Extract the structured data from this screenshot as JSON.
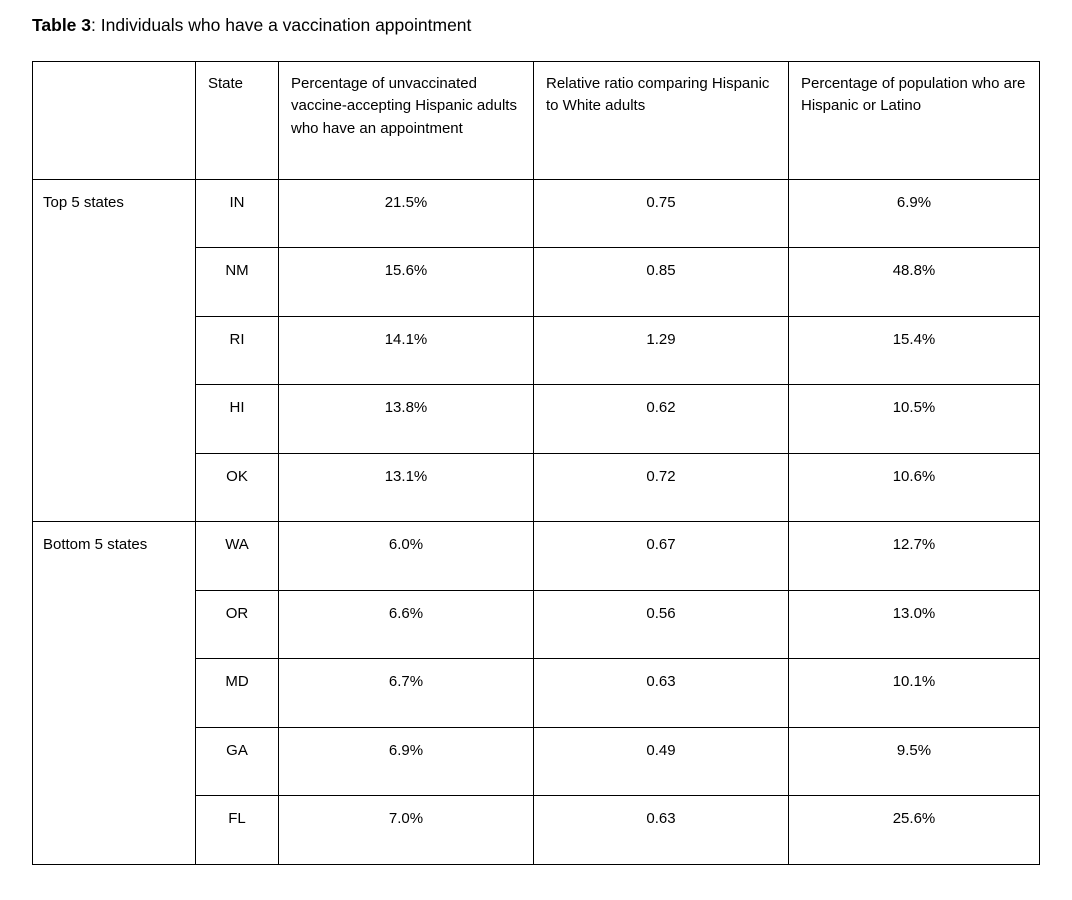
{
  "caption": {
    "label": "Table 3",
    "text": ": Individuals who have a vaccination appointment"
  },
  "table": {
    "headers": [
      "",
      "State",
      "Percentage of unvaccinated vaccine-accepting Hispanic adults who have an appointment",
      "Relative ratio comparing Hispanic to White adults",
      "Percentage of population who are Hispanic or Latino"
    ],
    "groups": [
      {
        "label": "Top 5 states",
        "rows": [
          {
            "state": "IN",
            "pct_appointment": "21.5%",
            "relative_ratio": "0.75",
            "pct_hispanic_population": "6.9%"
          },
          {
            "state": "NM",
            "pct_appointment": "15.6%",
            "relative_ratio": "0.85",
            "pct_hispanic_population": "48.8%"
          },
          {
            "state": "RI",
            "pct_appointment": "14.1%",
            "relative_ratio": "1.29",
            "pct_hispanic_population": "15.4%"
          },
          {
            "state": "HI",
            "pct_appointment": "13.8%",
            "relative_ratio": "0.62",
            "pct_hispanic_population": "10.5%"
          },
          {
            "state": "OK",
            "pct_appointment": "13.1%",
            "relative_ratio": "0.72",
            "pct_hispanic_population": "10.6%"
          }
        ]
      },
      {
        "label": "Bottom 5 states",
        "rows": [
          {
            "state": "WA",
            "pct_appointment": "6.0%",
            "relative_ratio": "0.67",
            "pct_hispanic_population": "12.7%"
          },
          {
            "state": "OR",
            "pct_appointment": "6.6%",
            "relative_ratio": "0.56",
            "pct_hispanic_population": "13.0%"
          },
          {
            "state": "MD",
            "pct_appointment": "6.7%",
            "relative_ratio": "0.63",
            "pct_hispanic_population": "10.1%"
          },
          {
            "state": "GA",
            "pct_appointment": "6.9%",
            "relative_ratio": "0.49",
            "pct_hispanic_population": "9.5%"
          },
          {
            "state": "FL",
            "pct_appointment": "7.0%",
            "relative_ratio": "0.63",
            "pct_hispanic_population": "25.6%"
          }
        ]
      }
    ],
    "colors": {
      "border": "#000000",
      "text": "#000000",
      "background": "#ffffff"
    }
  }
}
